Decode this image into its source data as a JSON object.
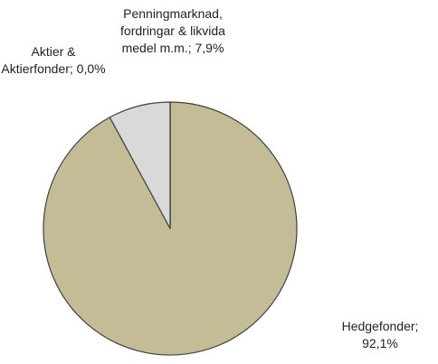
{
  "chart_data": {
    "type": "pie",
    "categories": [
      "Hedgefonder",
      "Penningmarknad, fordringar & likvida medel m.m.",
      "Aktier & Aktierfonder"
    ],
    "values": [
      92.1,
      7.9,
      0.0
    ],
    "value_labels": [
      "92,1%",
      "7,9%",
      "0,0%"
    ],
    "label_separator": ";",
    "colors": [
      "#c4bc96",
      "#d9d9d9",
      "#8c8c8c"
    ],
    "start_angle": 90,
    "clockwise": true
  }
}
